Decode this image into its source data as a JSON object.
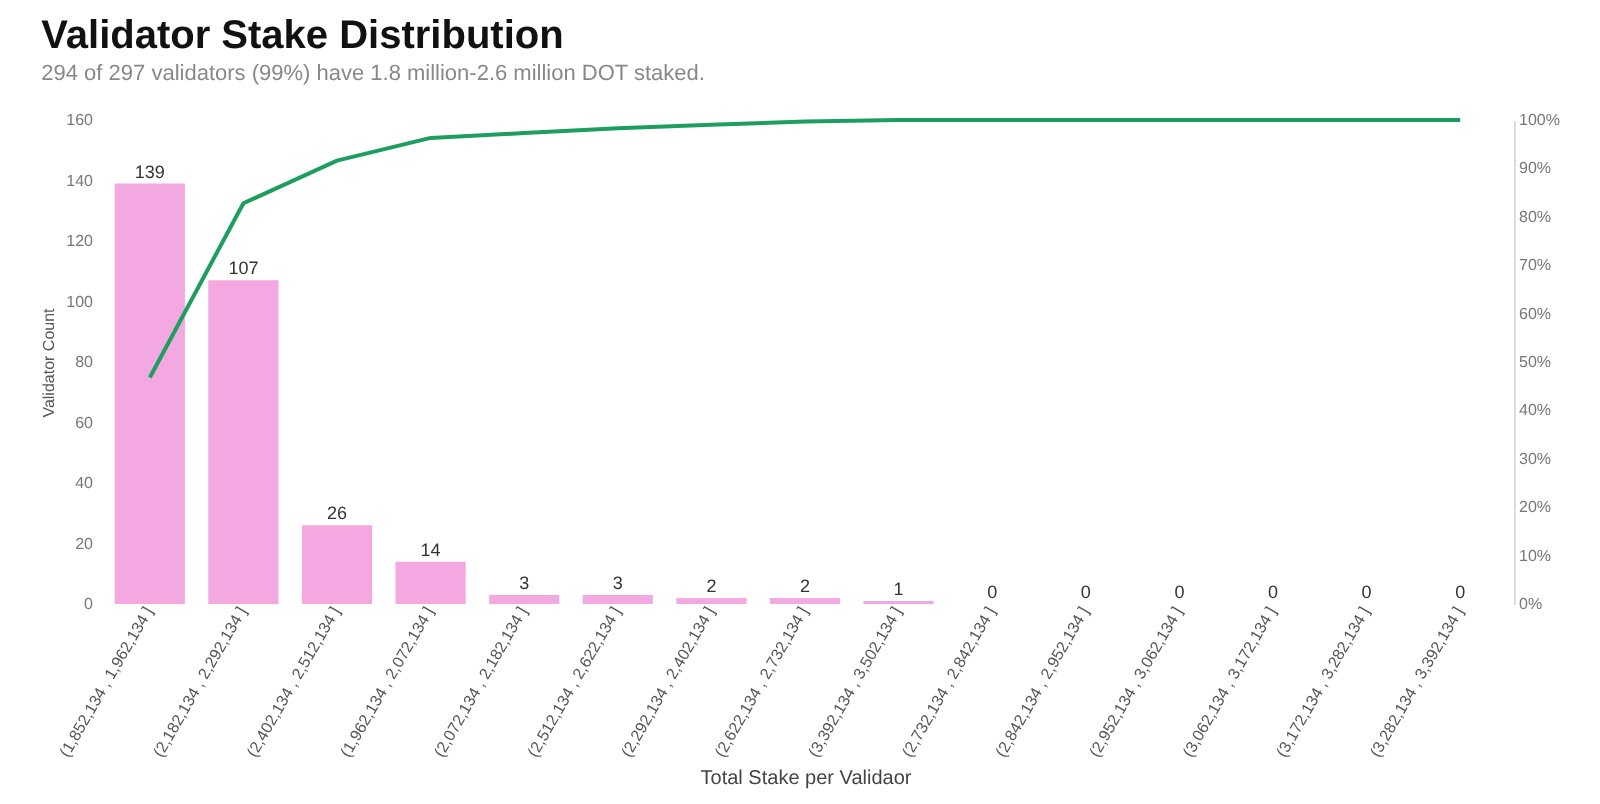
{
  "chart_data": {
    "type": "bar",
    "title": "Validator Stake Distribution",
    "subtitle": "294 of 297 validators (99%) have 1.8 million-2.6 million DOT staked.",
    "xlabel": "Total Stake per Validaor",
    "ylabel": "Validator Count",
    "categories": [
      "(1,852,134 , 1,962,134 ]",
      "(2,182,134 , 2,292,134 ]",
      "(2,402,134 , 2,512,134 ]",
      "(1,962,134 , 2,072,134 ]",
      "(2,072,134 , 2,182,134 ]",
      "(2,512,134 , 2,622,134 ]",
      "(2,292,134 , 2,402,134 ]",
      "(2,622,134 , 2,732,134 ]",
      "(3,392,134 , 3,502,134 ]",
      "(2,732,134 , 2,842,134 ]",
      "(2,842,134 , 2,952,134 ]",
      "(2,952,134 , 3,062,134 ]",
      "(3,062,134 , 3,172,134 ]",
      "(3,172,134 , 3,282,134 ]",
      "(3,282,134 , 3,392,134 ]"
    ],
    "series": [
      {
        "color": "#f4a8e2",
        "values": [
          139,
          107,
          26,
          14,
          3,
          3,
          2,
          2,
          1,
          0,
          0,
          0,
          0,
          0,
          0
        ],
        "value_labels": [
          "139",
          "107",
          "26",
          "14",
          "3",
          "3",
          "2",
          "2",
          "1",
          "0",
          "0",
          "0",
          "0",
          "0",
          "0"
        ]
      },
      {
        "type": "line",
        "axis": "y2",
        "color": "#1e9e5e",
        "values": [
          46.8,
          82.8,
          91.6,
          96.3,
          97.3,
          98.3,
          99.0,
          99.7,
          100,
          100,
          100,
          100,
          100,
          100,
          100
        ]
      }
    ],
    "ylim": [
      0,
      160
    ],
    "yticks": [
      0,
      20,
      40,
      60,
      80,
      100,
      120,
      140,
      160
    ],
    "y2lim": [
      0,
      100
    ],
    "y2ticks": [
      {
        "value": 0,
        "label": "0%"
      },
      {
        "value": 10,
        "label": "10%"
      },
      {
        "value": 20,
        "label": "20%"
      },
      {
        "value": 30,
        "label": "30%"
      },
      {
        "value": 40,
        "label": "40%"
      },
      {
        "value": 50,
        "label": "50%"
      },
      {
        "value": 60,
        "label": "60%"
      },
      {
        "value": 70,
        "label": "70%"
      },
      {
        "value": 80,
        "label": "80%"
      },
      {
        "value": 90,
        "label": "90%"
      },
      {
        "value": 100,
        "label": "100%"
      }
    ],
    "grid": false,
    "marker": "none",
    "line_style": "solid"
  }
}
